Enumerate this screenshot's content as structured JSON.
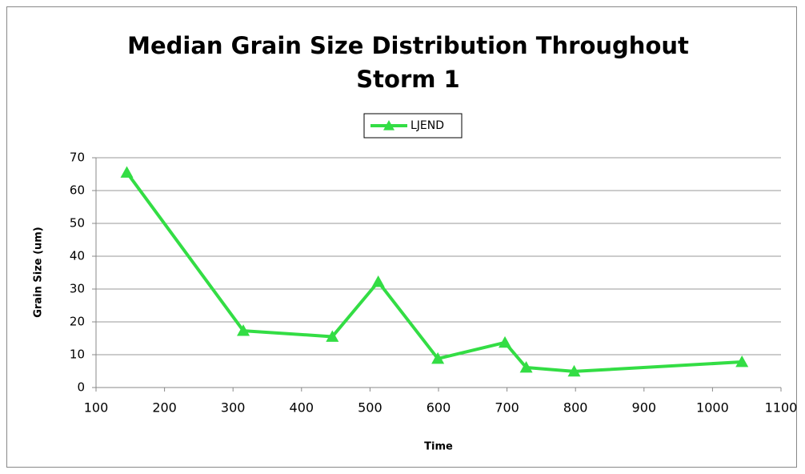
{
  "chart_data": {
    "type": "line",
    "title": "Median Grain Size Distribution Throughout Storm 1",
    "x_label": "Time",
    "y_label": "Grain Size (um)",
    "x": [
      145,
      315,
      445,
      512,
      599,
      697,
      728,
      798,
      1043
    ],
    "series": [
      {
        "name": "LJEND",
        "color": "#33dd44",
        "values": [
          65.5,
          17.3,
          15.5,
          32.2,
          8.8,
          13.7,
          6.1,
          4.9,
          7.8
        ]
      }
    ],
    "xlim": [
      100,
      1100
    ],
    "xticks": [
      100,
      200,
      300,
      400,
      500,
      600,
      700,
      800,
      900,
      1000,
      1100
    ],
    "ylim": [
      0,
      70
    ],
    "yticks": [
      0,
      10,
      20,
      30,
      40,
      50,
      60,
      70
    ],
    "grid": true,
    "legend": "top"
  }
}
